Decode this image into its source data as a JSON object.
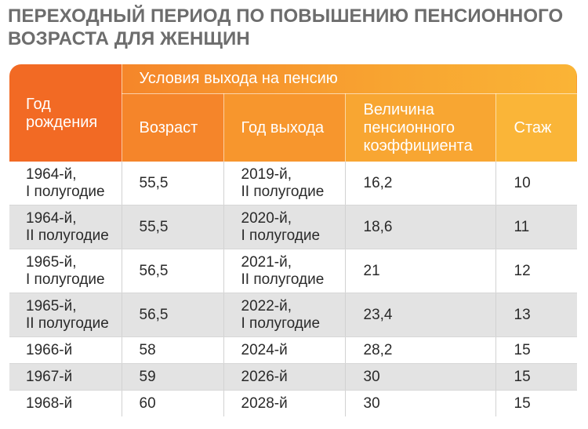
{
  "title": "ПЕРЕХОДНЫЙ ПЕРИОД ПО ПОВЫШЕНИЮ ПЕНСИОННОГО ВОЗРАСТА ДЛЯ ЖЕНЩИН",
  "colors": {
    "title": "#6d6d6d",
    "header_orange_dark": "#f26a24",
    "header_orange_light": "#fab538",
    "row_alt": "#e3e3e3"
  },
  "table": {
    "headers": {
      "birth_year": "Год рождения",
      "conditions": "Условия выхода на пенсию",
      "age": "Возраст",
      "exit_year": "Год выхода",
      "coefficient": "Величина пенсионного коэффициента",
      "stage": "Стаж"
    },
    "rows": [
      {
        "birth_l1": "1964-й,",
        "birth_l2": "I полугодие",
        "age": "55,5",
        "exit_l1": "2019-й,",
        "exit_l2": "II полугодие",
        "coef": "16,2",
        "stage": "10"
      },
      {
        "birth_l1": "1964-й,",
        "birth_l2": "II полугодие",
        "age": "55,5",
        "exit_l1": "2020-й,",
        "exit_l2": "I полугодие",
        "coef": "18,6",
        "stage": "11"
      },
      {
        "birth_l1": "1965-й,",
        "birth_l2": "I полугодие",
        "age": "56,5",
        "exit_l1": "2021-й,",
        "exit_l2": "II полугодие",
        "coef": "21",
        "stage": "12"
      },
      {
        "birth_l1": "1965-й,",
        "birth_l2": "II полугодие",
        "age": "56,5",
        "exit_l1": "2022-й,",
        "exit_l2": "I полугодие",
        "coef": "23,4",
        "stage": "13"
      },
      {
        "birth_l1": "1966-й",
        "birth_l2": "",
        "age": "58",
        "exit_l1": "2024-й",
        "exit_l2": "",
        "coef": "28,2",
        "stage": "15"
      },
      {
        "birth_l1": "1967-й",
        "birth_l2": "",
        "age": "59",
        "exit_l1": "2026-й",
        "exit_l2": "",
        "coef": "30",
        "stage": "15"
      },
      {
        "birth_l1": "1968-й",
        "birth_l2": "",
        "age": "60",
        "exit_l1": "2028-й",
        "exit_l2": "",
        "coef": "30",
        "stage": "15"
      }
    ]
  }
}
